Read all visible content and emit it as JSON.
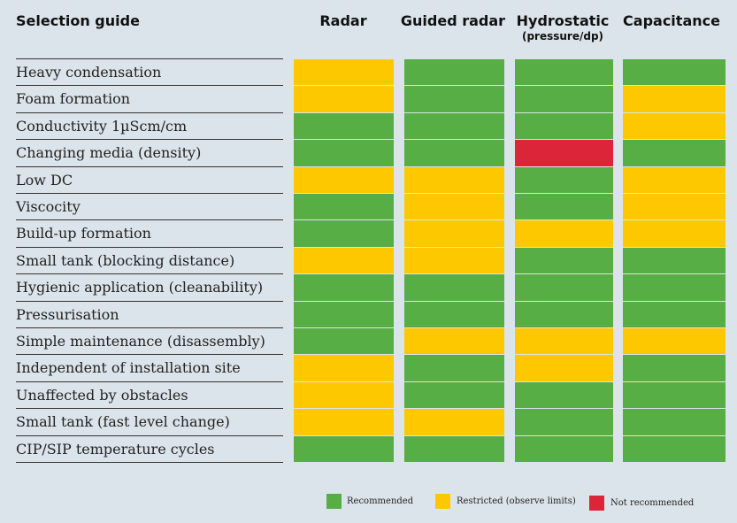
{
  "chart_data": {
    "type": "table",
    "title": "Selection guide",
    "columns": [
      {
        "name": "Radar",
        "sub": ""
      },
      {
        "name": "Guided radar",
        "sub": ""
      },
      {
        "name": "Hydrostatic",
        "sub": "(pressure/dp)"
      },
      {
        "name": "Capacitance",
        "sub": ""
      }
    ],
    "rows": [
      {
        "label": "Heavy condensation",
        "ratings": [
          "restricted",
          "recommended",
          "recommended",
          "recommended"
        ]
      },
      {
        "label": "Foam formation",
        "ratings": [
          "restricted",
          "recommended",
          "recommended",
          "restricted"
        ]
      },
      {
        "label": "Conductivity 1µScm/cm",
        "ratings": [
          "recommended",
          "recommended",
          "recommended",
          "restricted"
        ]
      },
      {
        "label": "Changing media (density)",
        "ratings": [
          "recommended",
          "recommended",
          "not_recommended",
          "recommended"
        ]
      },
      {
        "label": "Low DC",
        "ratings": [
          "restricted",
          "restricted",
          "recommended",
          "restricted"
        ]
      },
      {
        "label": "Viscocity",
        "ratings": [
          "recommended",
          "restricted",
          "recommended",
          "restricted"
        ]
      },
      {
        "label": "Build-up formation",
        "ratings": [
          "recommended",
          "restricted",
          "restricted",
          "restricted"
        ]
      },
      {
        "label": "Small tank (blocking distance)",
        "ratings": [
          "restricted",
          "restricted",
          "recommended",
          "recommended"
        ]
      },
      {
        "label": "Hygienic application (cleanability)",
        "ratings": [
          "recommended",
          "recommended",
          "recommended",
          "recommended"
        ]
      },
      {
        "label": "Pressurisation",
        "ratings": [
          "recommended",
          "recommended",
          "recommended",
          "recommended"
        ]
      },
      {
        "label": "Simple maintenance (disassembly)",
        "ratings": [
          "recommended",
          "restricted",
          "restricted",
          "restricted"
        ]
      },
      {
        "label": "Independent of installation site",
        "ratings": [
          "restricted",
          "recommended",
          "restricted",
          "recommended"
        ]
      },
      {
        "label": "Unaffected by obstacles",
        "ratings": [
          "restricted",
          "recommended",
          "recommended",
          "recommended"
        ]
      },
      {
        "label": "Small tank (fast level change)",
        "ratings": [
          "restricted",
          "restricted",
          "recommended",
          "recommended"
        ]
      },
      {
        "label": "CIP/SIP temperature cycles",
        "ratings": [
          "recommended",
          "recommended",
          "recommended",
          "recommended"
        ]
      }
    ],
    "legend": [
      {
        "key": "recommended",
        "label": "Recommended",
        "color": "#56ae44"
      },
      {
        "key": "restricted",
        "label": "Restricted (observe limits)",
        "color": "#fec800"
      },
      {
        "key": "not_recommended",
        "label": "Not recommended",
        "color": "#dc2539"
      }
    ],
    "legend_position": "bottom"
  }
}
